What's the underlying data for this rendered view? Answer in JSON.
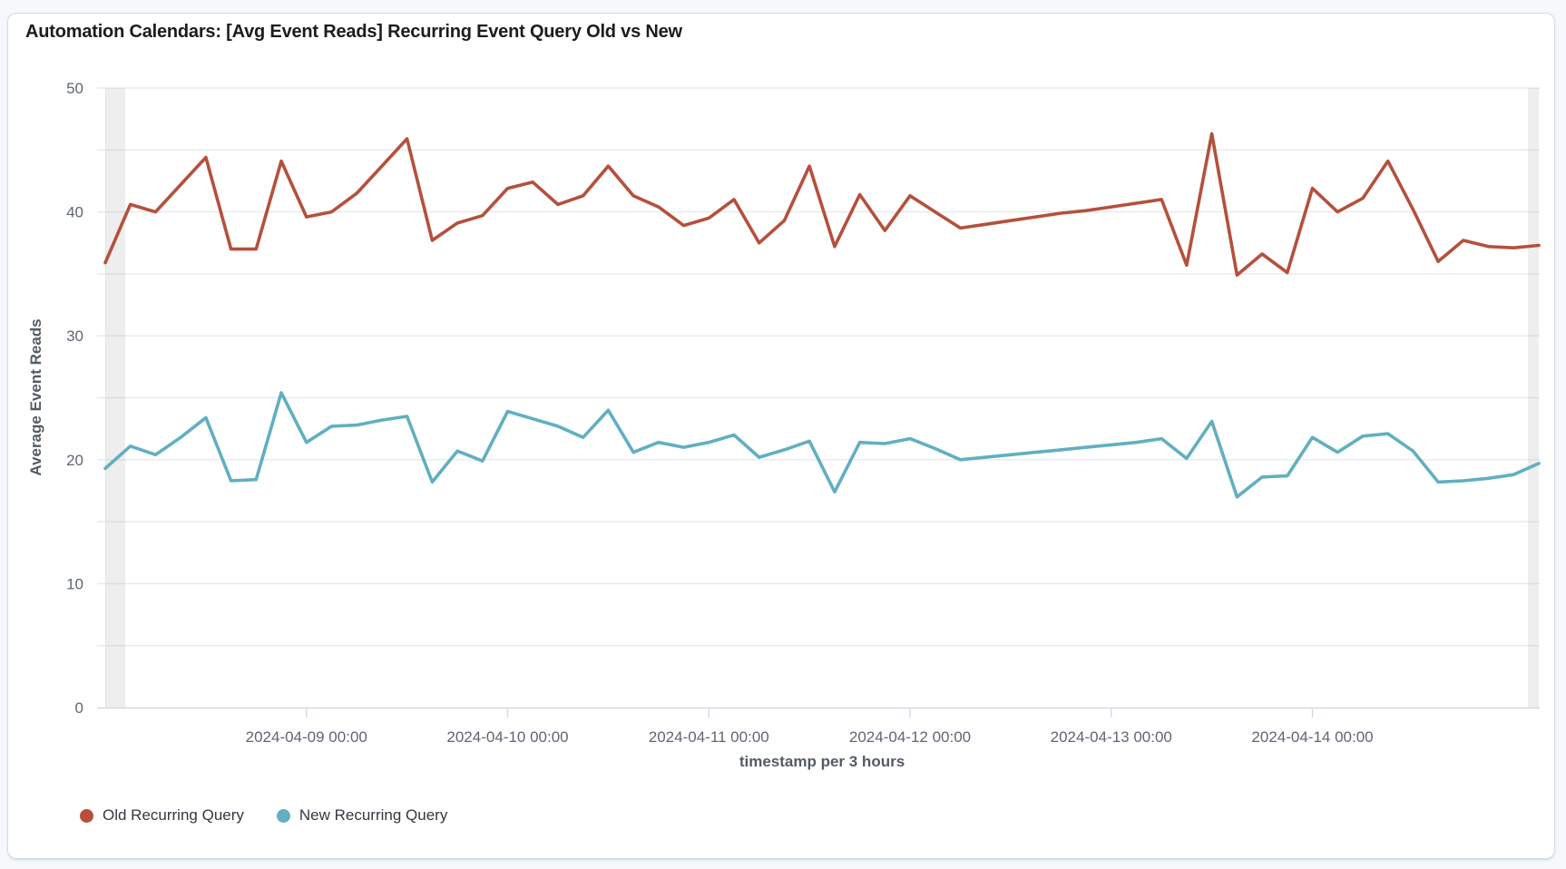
{
  "chart_data": {
    "type": "line",
    "title": "Automation Calendars: [Avg Event Reads] Recurring Event Query Old vs New",
    "xlabel": "timestamp per 3 hours",
    "ylabel": "Average Event Reads",
    "ylim": [
      0,
      50
    ],
    "y_ticks": [
      0,
      10,
      20,
      30,
      40,
      50
    ],
    "grid_step": 5,
    "legend_position": "bottom-left",
    "x_start": "2024-04-08 00:00",
    "x_interval_hours": 3,
    "x_tick_labels": [
      "2024-04-09 00:00",
      "2024-04-10 00:00",
      "2024-04-11 00:00",
      "2024-04-12 00:00",
      "2024-04-13 00:00",
      "2024-04-14 00:00"
    ],
    "x_tick_indices": [
      8,
      16,
      24,
      32,
      40,
      48
    ],
    "series": [
      {
        "name": "Old Recurring Query",
        "color": "#b5503c",
        "values": [
          35.9,
          40.6,
          40.0,
          42.2,
          44.4,
          37.0,
          37.0,
          44.1,
          39.6,
          40.0,
          41.5,
          43.7,
          45.9,
          37.7,
          39.1,
          39.7,
          41.9,
          42.4,
          40.6,
          41.3,
          43.7,
          41.3,
          40.4,
          38.9,
          39.5,
          41.0,
          37.5,
          39.3,
          43.7,
          37.2,
          41.4,
          38.5,
          41.3,
          40.0,
          38.7,
          39.0,
          39.3,
          39.6,
          39.9,
          40.1,
          40.4,
          40.7,
          41.0,
          35.7,
          46.3,
          34.9,
          36.6,
          35.1,
          41.9,
          40.0,
          41.1,
          44.1,
          40.2,
          36.0,
          37.7,
          37.2,
          37.1,
          37.3
        ]
      },
      {
        "name": "New Recurring Query",
        "color": "#61afc1",
        "values": [
          19.3,
          21.1,
          20.4,
          21.8,
          23.4,
          18.3,
          18.4,
          25.4,
          21.4,
          22.7,
          22.8,
          23.2,
          23.5,
          18.2,
          20.7,
          19.9,
          23.9,
          23.3,
          22.7,
          21.8,
          24.0,
          20.6,
          21.4,
          21.0,
          21.4,
          22.0,
          20.2,
          20.8,
          21.5,
          17.4,
          21.4,
          21.3,
          21.7,
          20.9,
          20.0,
          20.2,
          20.4,
          20.6,
          20.8,
          21.0,
          21.2,
          21.4,
          21.7,
          20.1,
          23.1,
          17.0,
          18.6,
          18.7,
          21.8,
          20.6,
          21.9,
          22.1,
          20.7,
          18.2,
          18.3,
          18.5,
          18.8,
          19.7
        ]
      }
    ]
  }
}
